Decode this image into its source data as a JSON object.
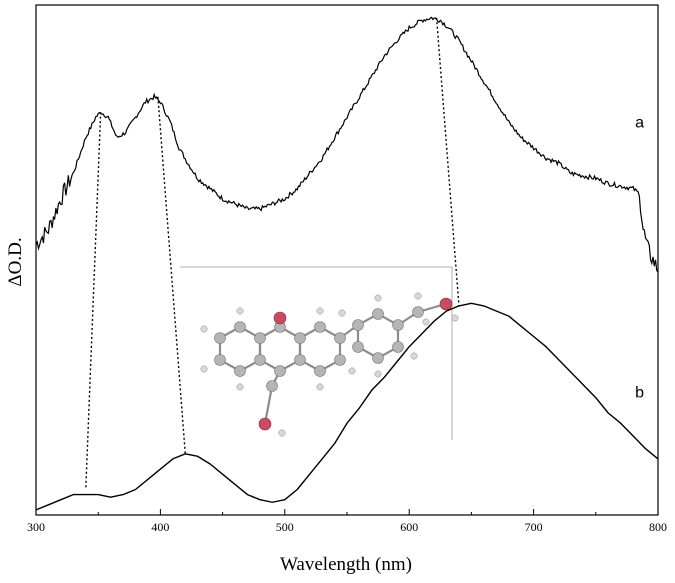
{
  "chart_data": {
    "type": "line",
    "title": "",
    "xlabel": "Wavelength (nm)",
    "ylabel": "ΔO.D.",
    "xlim": [
      300,
      800
    ],
    "ylim": [
      0,
      1
    ],
    "x_ticks": [
      "300",
      "400",
      "500",
      "600",
      "700",
      "800"
    ],
    "grid": false,
    "legend": "none",
    "series": [
      {
        "name": "a",
        "color": "#000000",
        "x": [
          300,
          310,
          320,
          330,
          340,
          348,
          352,
          358,
          365,
          372,
          380,
          388,
          395,
          400,
          408,
          415,
          422,
          430,
          440,
          450,
          460,
          470,
          480,
          490,
          500,
          510,
          520,
          530,
          540,
          550,
          560,
          570,
          580,
          590,
          600,
          610,
          618,
          625,
          632,
          640,
          650,
          660,
          670,
          680,
          690,
          700,
          710,
          720,
          730,
          740,
          750,
          760,
          770,
          780,
          785,
          788,
          792,
          796,
          800
        ],
        "y": [
          0.53,
          0.56,
          0.62,
          0.67,
          0.74,
          0.78,
          0.79,
          0.78,
          0.74,
          0.75,
          0.78,
          0.81,
          0.82,
          0.81,
          0.77,
          0.72,
          0.69,
          0.66,
          0.64,
          0.62,
          0.61,
          0.6,
          0.6,
          0.61,
          0.62,
          0.64,
          0.67,
          0.7,
          0.74,
          0.78,
          0.82,
          0.86,
          0.9,
          0.93,
          0.955,
          0.97,
          0.975,
          0.97,
          0.955,
          0.93,
          0.89,
          0.85,
          0.81,
          0.77,
          0.74,
          0.72,
          0.7,
          0.69,
          0.67,
          0.665,
          0.66,
          0.65,
          0.645,
          0.64,
          0.63,
          0.56,
          0.52,
          0.5,
          0.48
        ]
      },
      {
        "name": "b",
        "color": "#000000",
        "x": [
          300,
          310,
          320,
          330,
          340,
          350,
          360,
          370,
          380,
          390,
          400,
          410,
          420,
          430,
          440,
          450,
          460,
          470,
          480,
          490,
          500,
          510,
          520,
          530,
          540,
          550,
          560,
          570,
          580,
          590,
          600,
          610,
          620,
          630,
          640,
          650,
          660,
          670,
          680,
          690,
          700,
          710,
          720,
          730,
          740,
          750,
          760,
          770,
          780,
          790,
          800
        ],
        "y": [
          0.01,
          0.02,
          0.03,
          0.04,
          0.04,
          0.04,
          0.035,
          0.04,
          0.05,
          0.07,
          0.09,
          0.11,
          0.12,
          0.115,
          0.1,
          0.08,
          0.06,
          0.04,
          0.03,
          0.025,
          0.03,
          0.05,
          0.08,
          0.11,
          0.14,
          0.18,
          0.21,
          0.245,
          0.27,
          0.3,
          0.33,
          0.355,
          0.38,
          0.4,
          0.41,
          0.415,
          0.41,
          0.4,
          0.39,
          0.37,
          0.35,
          0.33,
          0.305,
          0.28,
          0.255,
          0.23,
          0.2,
          0.18,
          0.155,
          0.13,
          0.11
        ]
      }
    ],
    "annotations": [
      {
        "series": "a",
        "text": "a",
        "x": 788,
        "y": 0.76
      },
      {
        "series": "b",
        "text": "b",
        "x": 788,
        "y": 0.23
      }
    ],
    "correspondence_lines": [
      {
        "from": [
          352,
          0.79
        ],
        "to": [
          340,
          0.05
        ]
      },
      {
        "from": [
          398,
          0.82
        ],
        "to": [
          420,
          0.12
        ]
      },
      {
        "from": [
          622,
          0.975
        ],
        "to": [
          640,
          0.41
        ]
      }
    ]
  }
}
